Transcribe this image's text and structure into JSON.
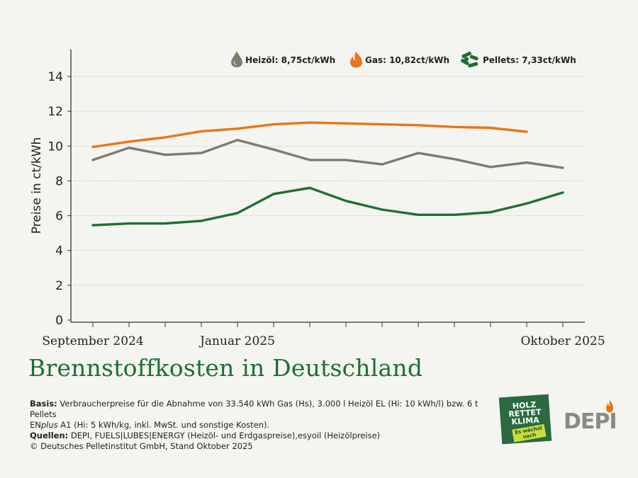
{
  "chart_data": {
    "type": "line",
    "ylabel": "Preise in ct/kWh",
    "ylim": [
      0,
      15
    ],
    "yticks": [
      0,
      2,
      4,
      6,
      8,
      10,
      12,
      14
    ],
    "x": [
      "2024-09",
      "2024-10",
      "2024-11",
      "2024-12",
      "2025-01",
      "2025-02",
      "2025-03",
      "2025-04",
      "2025-05",
      "2025-06",
      "2025-07",
      "2025-08",
      "2025-09",
      "2025-10"
    ],
    "xtick_labels": {
      "0": "September 2024",
      "4": "Januar 2025",
      "13": "Oktober 2025"
    },
    "grid": "horizontal dotted",
    "legend_placement": "top-right",
    "series": [
      {
        "name": "Heizöl",
        "legend_label": "Heizöl: 8,75ct/kWh",
        "color": "#7f7a6c",
        "icon": "oil-drop-icon",
        "values": [
          9.2,
          9.9,
          9.5,
          9.6,
          10.35,
          9.8,
          9.2,
          9.2,
          8.95,
          9.6,
          9.25,
          8.8,
          9.05,
          8.75
        ]
      },
      {
        "name": "Gas",
        "legend_label": "Gas: 10,82ct/kWh",
        "color": "#e8751a",
        "icon": "flame-icon",
        "values": [
          9.95,
          10.25,
          10.5,
          10.85,
          11.0,
          11.25,
          11.35,
          11.3,
          11.25,
          11.2,
          11.1,
          11.05,
          10.82,
          null
        ]
      },
      {
        "name": "Pellets",
        "legend_label": "Pellets: 7,33ct/kWh",
        "color": "#1f6e34",
        "icon": "pellets-icon",
        "values": [
          5.45,
          5.55,
          5.55,
          5.7,
          6.15,
          7.25,
          7.6,
          6.85,
          6.35,
          6.05,
          6.05,
          6.2,
          6.7,
          7.33
        ]
      }
    ]
  },
  "title": "Brennstoffkosten in Deutschland",
  "footnotes": {
    "basis_label": "Basis:",
    "basis_text_1": " Verbraucherpreise für die Abnahme von 33.540 kWh Gas (Hs), 3.000 l Heizöl EL (Hi: 10 kWh/l) bzw. 6 t Pellets",
    "basis_text_2a": "EN",
    "basis_text_2b": "plus",
    "basis_text_2c": " A1 (Hi: 5 kWh/kg, inkl. MwSt. und sonstige Kosten).",
    "quellen_label": "Quellen:",
    "quellen_text": " DEPI, FUELS|LUBES|ENERGY (Heizöl- und Erdgaspreise),esyoil (Heizölpreise)",
    "copyright": "© Deutsches Pelletinstitut GmbH, Stand Oktober 2025"
  },
  "logos": {
    "hrk_line1": "HOLZ",
    "hrk_line2": "RETTET",
    "hrk_line3": "KLIMA",
    "hrk_tag": "Es wächst nach",
    "depi": "DEPI"
  },
  "colors": {
    "background": "#f4f4f1",
    "title": "#1f6e34",
    "heizoel": "#7f7a6c",
    "gas": "#e8751a",
    "pellets": "#1f6e34"
  }
}
